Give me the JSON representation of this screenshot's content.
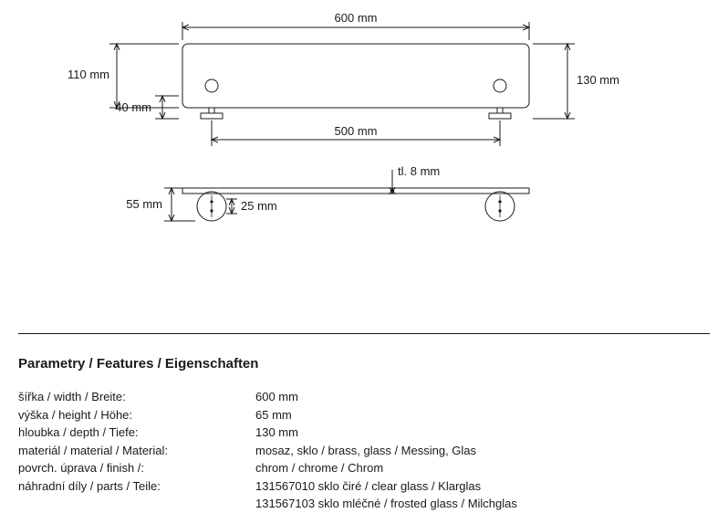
{
  "diagram": {
    "stroke": "#1a1a1a",
    "stroke_width": 1,
    "fill": "#ffffff",
    "font_size": 13,
    "front": {
      "width_label": "600 mm",
      "body_height_label": "110 mm",
      "total_height_label": "130 mm",
      "foot_height_label": "40 mm",
      "mount_span_label": "500 mm"
    },
    "top": {
      "mount_height_label": "55 mm",
      "mount_dia_label": "25 mm",
      "thickness_label": "tl. 8 mm"
    }
  },
  "features": {
    "heading": "Parametry / Features / Eigenschaften",
    "rows": [
      {
        "label": "šířka / width / Breite:",
        "value": "600 mm"
      },
      {
        "label": "výška / height / Höhe:",
        "value": "65 mm"
      },
      {
        "label": "hloubka / depth / Tiefe:",
        "value": "130 mm"
      },
      {
        "label": "materiál / material / Material:",
        "value": "mosaz, sklo / brass, glass / Messing, Glas"
      },
      {
        "label": "povrch. úprava / finish /:",
        "value": "chrom / chrome / Chrom"
      },
      {
        "label": "náhradní díly / parts / Teile:",
        "value": "131567010  sklo čiré / clear glass / Klarglas"
      },
      {
        "label": "",
        "value": "131567103  sklo mléčné / frosted glass / Milchglas"
      }
    ]
  }
}
